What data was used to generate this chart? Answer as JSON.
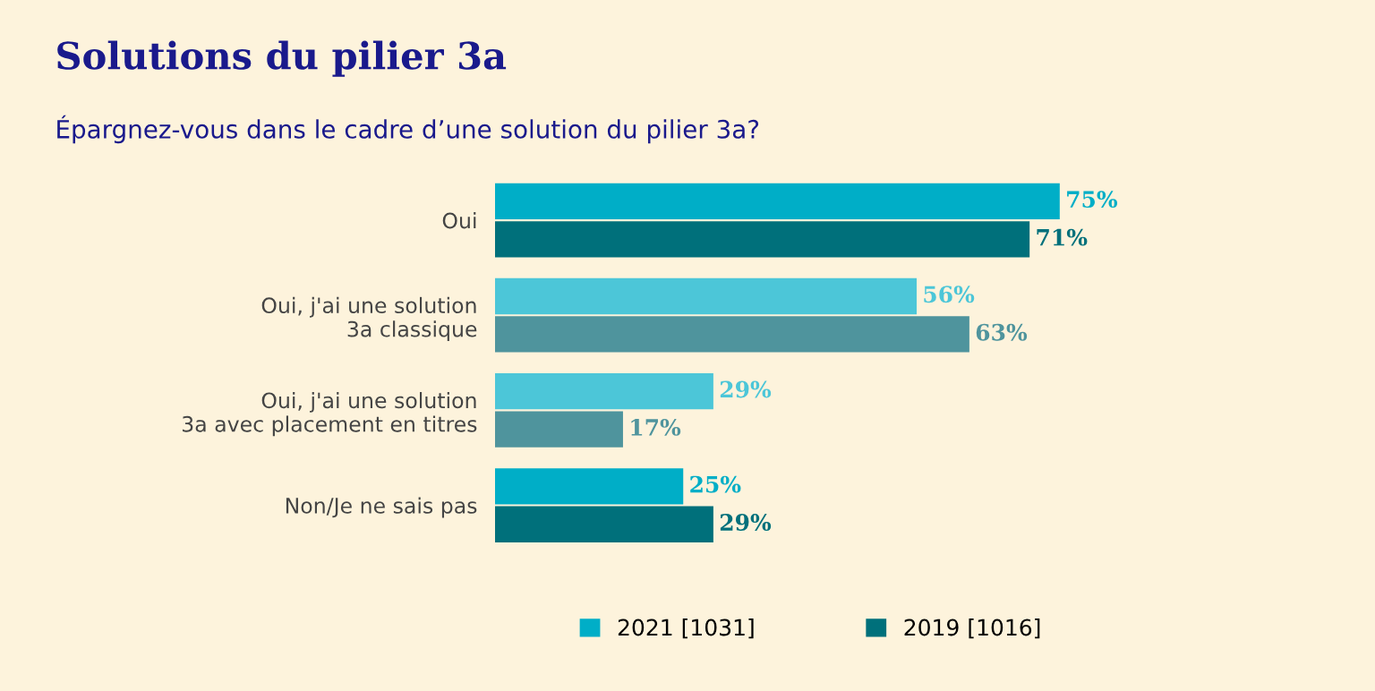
{
  "chart_data": {
    "type": "bar",
    "orientation": "horizontal",
    "title": "Solutions du pilier 3a",
    "subtitle": "Épargnez-vous dans le cadre d’une solution du pilier 3a?",
    "categories": [
      "Oui",
      "Oui, j'ai une solution\n3a classique",
      "Oui, j'ai une solution\n3a avec placement en titres",
      "Non/Je ne sais pas"
    ],
    "series": [
      {
        "name": "2021 [1031]",
        "color": "#00aec7",
        "colors": [
          "#00aec7",
          "#4cc6d8",
          "#4cc6d8",
          "#00aec7"
        ],
        "values": [
          75,
          56,
          29,
          25
        ],
        "value_labels": [
          "75%",
          "56%",
          "29%",
          "25%"
        ]
      },
      {
        "name": "2019 [1016]",
        "color": "#00707b",
        "colors": [
          "#00707b",
          "#4f949d",
          "#4f949d",
          "#00707b"
        ],
        "values": [
          71,
          63,
          17,
          29
        ],
        "value_labels": [
          "71%",
          "63%",
          "17%",
          "29%"
        ]
      }
    ],
    "legend": "bottom",
    "grid": false
  }
}
